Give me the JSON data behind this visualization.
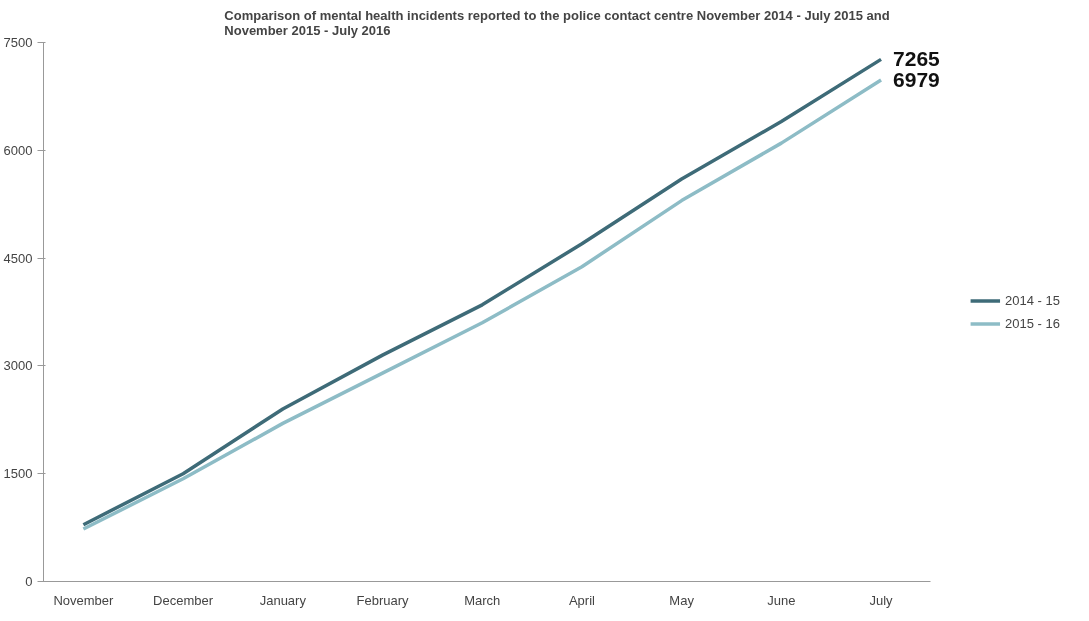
{
  "chart_data": {
    "type": "line",
    "title": "Comparison of mental health incidents reported to the police contact centre November 2014 - July 2015 and November 2015 - July 2016",
    "categories": [
      "November",
      "December",
      "January",
      "February",
      "March",
      "April",
      "May",
      "June",
      "July"
    ],
    "series": [
      {
        "name": "2014 - 15",
        "color": "#3e6b78",
        "values": [
          790,
          1500,
          2400,
          3150,
          3850,
          4700,
          5600,
          6400,
          7265
        ],
        "value_labels": [
          null,
          null,
          null,
          null,
          null,
          null,
          null,
          null,
          "7265"
        ]
      },
      {
        "name": "2015 - 16",
        "color": "#8dbcc6",
        "values": [
          730,
          1430,
          2200,
          2900,
          3600,
          4380,
          5300,
          6100,
          6979
        ],
        "value_labels": [
          null,
          null,
          null,
          null,
          null,
          null,
          null,
          null,
          "6979"
        ]
      }
    ],
    "ylim": [
      0,
      7500
    ],
    "yticks": [
      0,
      1500,
      3000,
      4500,
      6000,
      7500
    ],
    "grid": false,
    "legend": "right",
    "marker": "none",
    "line_style": "solid"
  }
}
